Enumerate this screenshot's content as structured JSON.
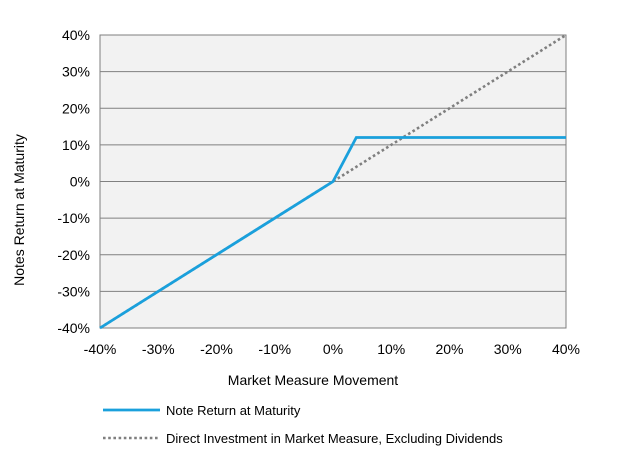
{
  "chart_data": {
    "type": "line",
    "xlabel": "Market Measure Movement",
    "ylabel": "Notes Return at Maturity",
    "xlim": [
      -40,
      40
    ],
    "ylim": [
      -40,
      40
    ],
    "xticks": [
      -40,
      -30,
      -20,
      -10,
      0,
      10,
      20,
      30,
      40
    ],
    "yticks": [
      -40,
      -30,
      -20,
      -10,
      0,
      10,
      20,
      30,
      40
    ],
    "xtick_labels": [
      "-40%",
      "-30%",
      "-20%",
      "-10%",
      "0%",
      "10%",
      "20%",
      "30%",
      "40%"
    ],
    "ytick_labels": [
      "-40%",
      "-30%",
      "-20%",
      "-10%",
      "0%",
      "10%",
      "20%",
      "30%",
      "40%"
    ],
    "grid": "horizontal",
    "legend_position": "bottom",
    "series": [
      {
        "name": "Note Return at Maturity",
        "color": "#1aa0dc",
        "style": "solid",
        "x": [
          -40,
          0,
          4,
          40
        ],
        "y": [
          -40,
          0,
          12,
          12
        ]
      },
      {
        "name": "Direct Investment in Market Measure, Excluding Dividends",
        "color": "#7f7f7f",
        "style": "dotted",
        "x": [
          -40,
          40
        ],
        "y": [
          -40,
          40
        ]
      }
    ]
  }
}
